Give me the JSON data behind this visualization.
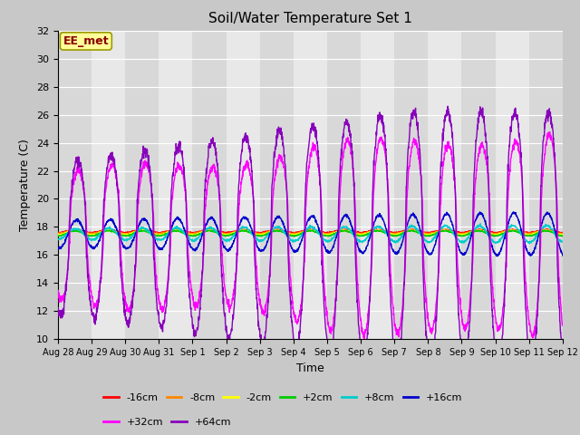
{
  "title": "Soil/Water Temperature Set 1",
  "xlabel": "Time",
  "ylabel": "Temperature (C)",
  "ylim": [
    10,
    32
  ],
  "yticks": [
    10,
    12,
    14,
    16,
    18,
    20,
    22,
    24,
    26,
    28,
    30,
    32
  ],
  "bg_outer": "#c8c8c8",
  "bg_inner_light": "#e8e8e8",
  "bg_inner_dark": "#d8d8d8",
  "grid_color": "#ffffff",
  "annotation_text": "EE_met",
  "annotation_color": "#8b0000",
  "annotation_bg": "#ffff99",
  "annotation_border": "#999900",
  "series": [
    {
      "label": "-16cm",
      "color": "#ff0000"
    },
    {
      "label": "-8cm",
      "color": "#ff8800"
    },
    {
      "label": "-2cm",
      "color": "#ffff00"
    },
    {
      "label": "+2cm",
      "color": "#00cc00"
    },
    {
      "label": "+8cm",
      "color": "#00cccc"
    },
    {
      "label": "+16cm",
      "color": "#0000cc"
    },
    {
      "label": "+32cm",
      "color": "#ff00ff"
    },
    {
      "label": "+64cm",
      "color": "#8800bb"
    }
  ],
  "x_tick_labels": [
    "Aug 28",
    "Aug 29",
    "Aug 30",
    "Aug 31",
    "Sep 1",
    "Sep 2",
    "Sep 3",
    "Sep 4",
    "Sep 5",
    "Sep 6",
    "Sep 7",
    "Sep 8",
    "Sep 9",
    "Sep 10",
    "Sep 11",
    "Sep 12"
  ],
  "total_days": 15,
  "samples_per_day": 144
}
